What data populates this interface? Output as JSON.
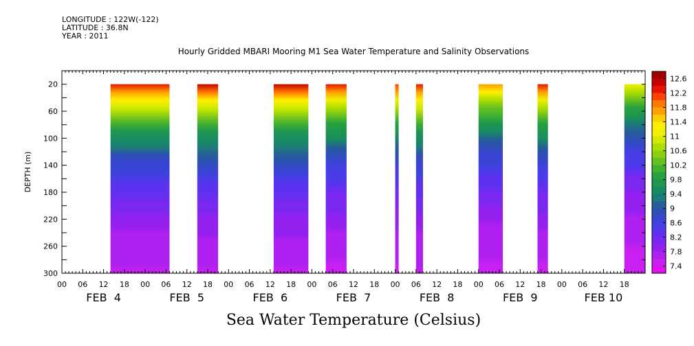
{
  "header": {
    "longitude": "LONGITUDE : 122W(-122)",
    "latitude": "LATITUDE : 36.8N",
    "year": "YEAR : 2011"
  },
  "chart_data": {
    "type": "heatmap",
    "title": "Hourly Gridded MBARI Mooring M1 Sea Water Temperature and Salinity Observations",
    "xlabel": "Sea Water Temperature (Celsius)",
    "ylabel": "DEPTH (m)",
    "ylim": [
      300,
      0
    ],
    "y_ticks": [
      "20",
      "60",
      "100",
      "140",
      "180",
      "220",
      "260",
      "300"
    ],
    "y_tick_values": [
      20,
      60,
      100,
      140,
      180,
      220,
      260,
      300
    ],
    "x_hour_labels": [
      "00",
      "06",
      "12",
      "18",
      "00",
      "06",
      "12",
      "18",
      "00",
      "06",
      "12",
      "18",
      "00",
      "06",
      "12",
      "18",
      "00",
      "06",
      "12",
      "18",
      "00",
      "06",
      "12",
      "18",
      "00",
      "06",
      "12",
      "18"
    ],
    "x_date_labels": [
      "FEB  4",
      "FEB  5",
      "FEB  6",
      "FEB  7",
      "FEB  8",
      "FEB  9",
      "FEB 10"
    ],
    "x_range_hours": [
      0,
      168
    ],
    "data_depth_range": [
      20,
      300
    ],
    "data_segments_hours": [
      {
        "start": 14,
        "end": 31
      },
      {
        "start": 39,
        "end": 45
      },
      {
        "start": 61,
        "end": 71
      },
      {
        "start": 76,
        "end": 82
      },
      {
        "start": 96,
        "end": 97
      },
      {
        "start": 102,
        "end": 104
      },
      {
        "start": 120,
        "end": 127
      },
      {
        "start": 137,
        "end": 140
      },
      {
        "start": 162,
        "end": 168
      }
    ],
    "surface_temps": [
      12.4,
      12.5,
      12.5,
      12.3,
      12.2,
      12.4,
      11.8,
      12.3,
      11.2
    ],
    "colorbar": {
      "levels": [
        "12.6",
        "12.2",
        "11.8",
        "11.4",
        "11",
        "10.6",
        "10.2",
        "9.8",
        "9.4",
        "9",
        "8.6",
        "8.2",
        "7.8",
        "7.4"
      ],
      "colors": [
        "#a00000",
        "#c80000",
        "#e81400",
        "#ff4400",
        "#ff7800",
        "#ffa000",
        "#ffcc00",
        "#ffee00",
        "#f0f000",
        "#d0ea00",
        "#aedd00",
        "#8ccf10",
        "#66c020",
        "#40b030",
        "#26a040",
        "#1e9650",
        "#188c60",
        "#1c7c78",
        "#265e98",
        "#2e4eb8",
        "#3a44d4",
        "#4a3ce8",
        "#6030f0",
        "#7a28f0",
        "#9420f0",
        "#b020f0",
        "#c820f0",
        "#e010f0"
      ]
    }
  }
}
